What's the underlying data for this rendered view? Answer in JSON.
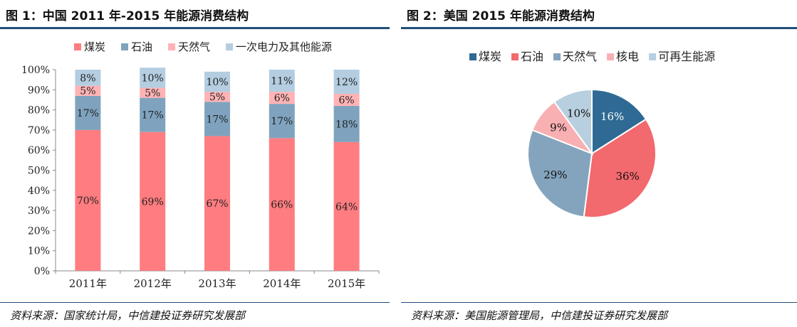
{
  "figures": [
    {
      "title": "图 1：中国 2011 年-2015 年能源消费结构",
      "source": "资料来源：国家统计局，中信建投证券研究发展部"
    },
    {
      "title": "图 2：美国 2015 年能源消费结构",
      "source": "资料来源：美国能源管理局，中信建投证券研究发展部"
    }
  ],
  "colors": {
    "coal": "#ff7c80",
    "oil": "#7fa3be",
    "gas": "#ffb3b5",
    "other": "#b4cde0",
    "pie_coal": "#2e6a93",
    "pie_oil": "#f2696e",
    "pie_gas": "#84a4bd",
    "pie_nuclear": "#f9b0b2",
    "pie_renew": "#b8cfdf",
    "axis": "#888888",
    "rule": "#1f4e79"
  },
  "chart_data": [
    {
      "type": "bar",
      "stacked": true,
      "categories": [
        "2011年",
        "2012年",
        "2013年",
        "2014年",
        "2015年"
      ],
      "series": [
        {
          "name": "煤炭",
          "color": "#ff7c80",
          "values": [
            70,
            69,
            67,
            66,
            64
          ],
          "labels": [
            "70%",
            "69%",
            "67%",
            "66%",
            "64%"
          ]
        },
        {
          "name": "石油",
          "color": "#7fa3be",
          "values": [
            17,
            17,
            17,
            17,
            18
          ],
          "labels": [
            "17%",
            "17%",
            "17%",
            "17%",
            "18%"
          ]
        },
        {
          "name": "天然气",
          "color": "#ffb3b5",
          "values": [
            5,
            5,
            5,
            6,
            6
          ],
          "labels": [
            "5%",
            "5%",
            "5%",
            "6%",
            "6%"
          ]
        },
        {
          "name": "一次电力及其他能源",
          "color": "#b4cde0",
          "values": [
            8,
            10,
            10,
            11,
            12
          ],
          "labels": [
            "8%",
            "10%",
            "10%",
            "11%",
            "12%"
          ]
        }
      ],
      "ylim": [
        0,
        100
      ],
      "yticks": [
        "0%",
        "10%",
        "20%",
        "30%",
        "40%",
        "50%",
        "60%",
        "70%",
        "80%",
        "90%",
        "100%"
      ],
      "legend": "top",
      "grid": false
    },
    {
      "type": "pie",
      "labels": [
        "煤炭",
        "石油",
        "天然气",
        "核电",
        "可再生能源"
      ],
      "values": [
        16,
        36,
        29,
        9,
        10
      ],
      "value_labels": [
        "16%",
        "36%",
        "29%",
        "9%",
        "10%"
      ],
      "colors": [
        "#2e6a93",
        "#f2696e",
        "#84a4bd",
        "#f9b0b2",
        "#b8cfdf"
      ],
      "label_colors": [
        "#ffffff",
        "#111111",
        "#111111",
        "#111111",
        "#111111"
      ],
      "legend": "top"
    }
  ]
}
